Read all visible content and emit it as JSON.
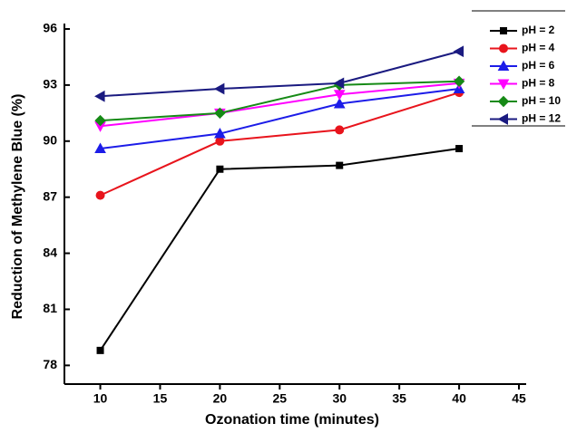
{
  "chart_data": {
    "type": "line",
    "x_label": "Ozonation time (minutes)",
    "y_label": "Reduction of Methylene Blue (%)",
    "x": [
      10,
      20,
      30,
      40
    ],
    "series": [
      {
        "name": "pH = 2",
        "color": "#000000",
        "marker": "square",
        "values": [
          78.8,
          88.5,
          88.7,
          89.6
        ]
      },
      {
        "name": "pH = 4",
        "color": "#e8141c",
        "marker": "circle",
        "values": [
          87.1,
          90.0,
          90.6,
          92.6
        ]
      },
      {
        "name": "pH = 6",
        "color": "#1c1ce8",
        "marker": "triangle-up",
        "values": [
          89.6,
          90.4,
          92.0,
          92.8
        ]
      },
      {
        "name": "pH = 8",
        "color": "#ff00ff",
        "marker": "triangle-down",
        "values": [
          90.8,
          91.5,
          92.5,
          93.1
        ]
      },
      {
        "name": "pH = 10",
        "color": "#168a16",
        "marker": "diamond",
        "values": [
          91.1,
          91.5,
          93.0,
          93.2
        ]
      },
      {
        "name": "pH = 12",
        "color": "#1a1a80",
        "marker": "triangle-left",
        "values": [
          92.4,
          92.8,
          93.1,
          94.8
        ]
      }
    ],
    "xlim": [
      7,
      45
    ],
    "xticks": [
      10,
      15,
      20,
      25,
      30,
      35,
      40,
      45
    ],
    "ylim": [
      77,
      96
    ],
    "yticks": [
      78,
      81,
      84,
      87,
      90,
      93,
      96
    ],
    "legend": "upper-right"
  }
}
